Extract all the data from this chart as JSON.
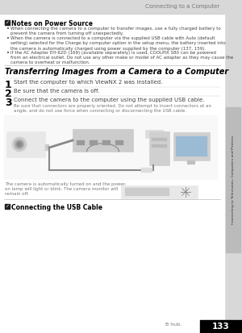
{
  "page_bg": "#d8d8d8",
  "content_bg": "#ffffff",
  "header_text": "Connecting to a Computer",
  "header_color": "#777777",
  "header_bg": "#d8d8d8",
  "side_tab_text": "Connecting to Televisions, Computers and Printers",
  "side_tab_bg": "#bbbbbb",
  "section1_title": "Notes on Power Source",
  "section2_title": "Transferring Images from a Camera to a Computer",
  "steps": [
    {
      "num": "1",
      "text": "Start the computer to which ViewNX 2 was installed."
    },
    {
      "num": "2",
      "text": "Be sure that the camera is off."
    },
    {
      "num": "3",
      "text": "Connect the camera to the computer using the supplied USB cable."
    }
  ],
  "step3_note": "Be sure that connectors are properly oriented. Do not attempt to invert connectors at an\nangle, and do not use force when connecting or disconnecting the USB cable.",
  "caption_text": "The camera is automatically turned on and the power-\non lamp will light or blink. The camera monitor will\nremain off.",
  "section3_title": "Connecting the USB Cable",
  "footer_text": "B hub.",
  "page_num": "133",
  "text_color": "#444444",
  "light_text": "#777777",
  "title_color": "#000000",
  "bullet1": "When connecting the camera to a computer to transfer images, use a fully charged battery to\nprevent the camera from turning off unexpectedly.",
  "bullet2": "When the camera is connected to a computer via the supplied USB cable with Auto (default\nsetting) selected for the Charge by computer option in the setup menu, the battery inserted into\nthe camera is automatically charged using power supplied by the computer (137, 159).",
  "bullet3": "If the AC Adapter EH-62D (169) (available separately) is used, COOLPIX S80 can be powered\nfrom an electrical outlet. Do not use any other make or model of AC adapter as they may cause the\ncamera to overheat or malfunction."
}
